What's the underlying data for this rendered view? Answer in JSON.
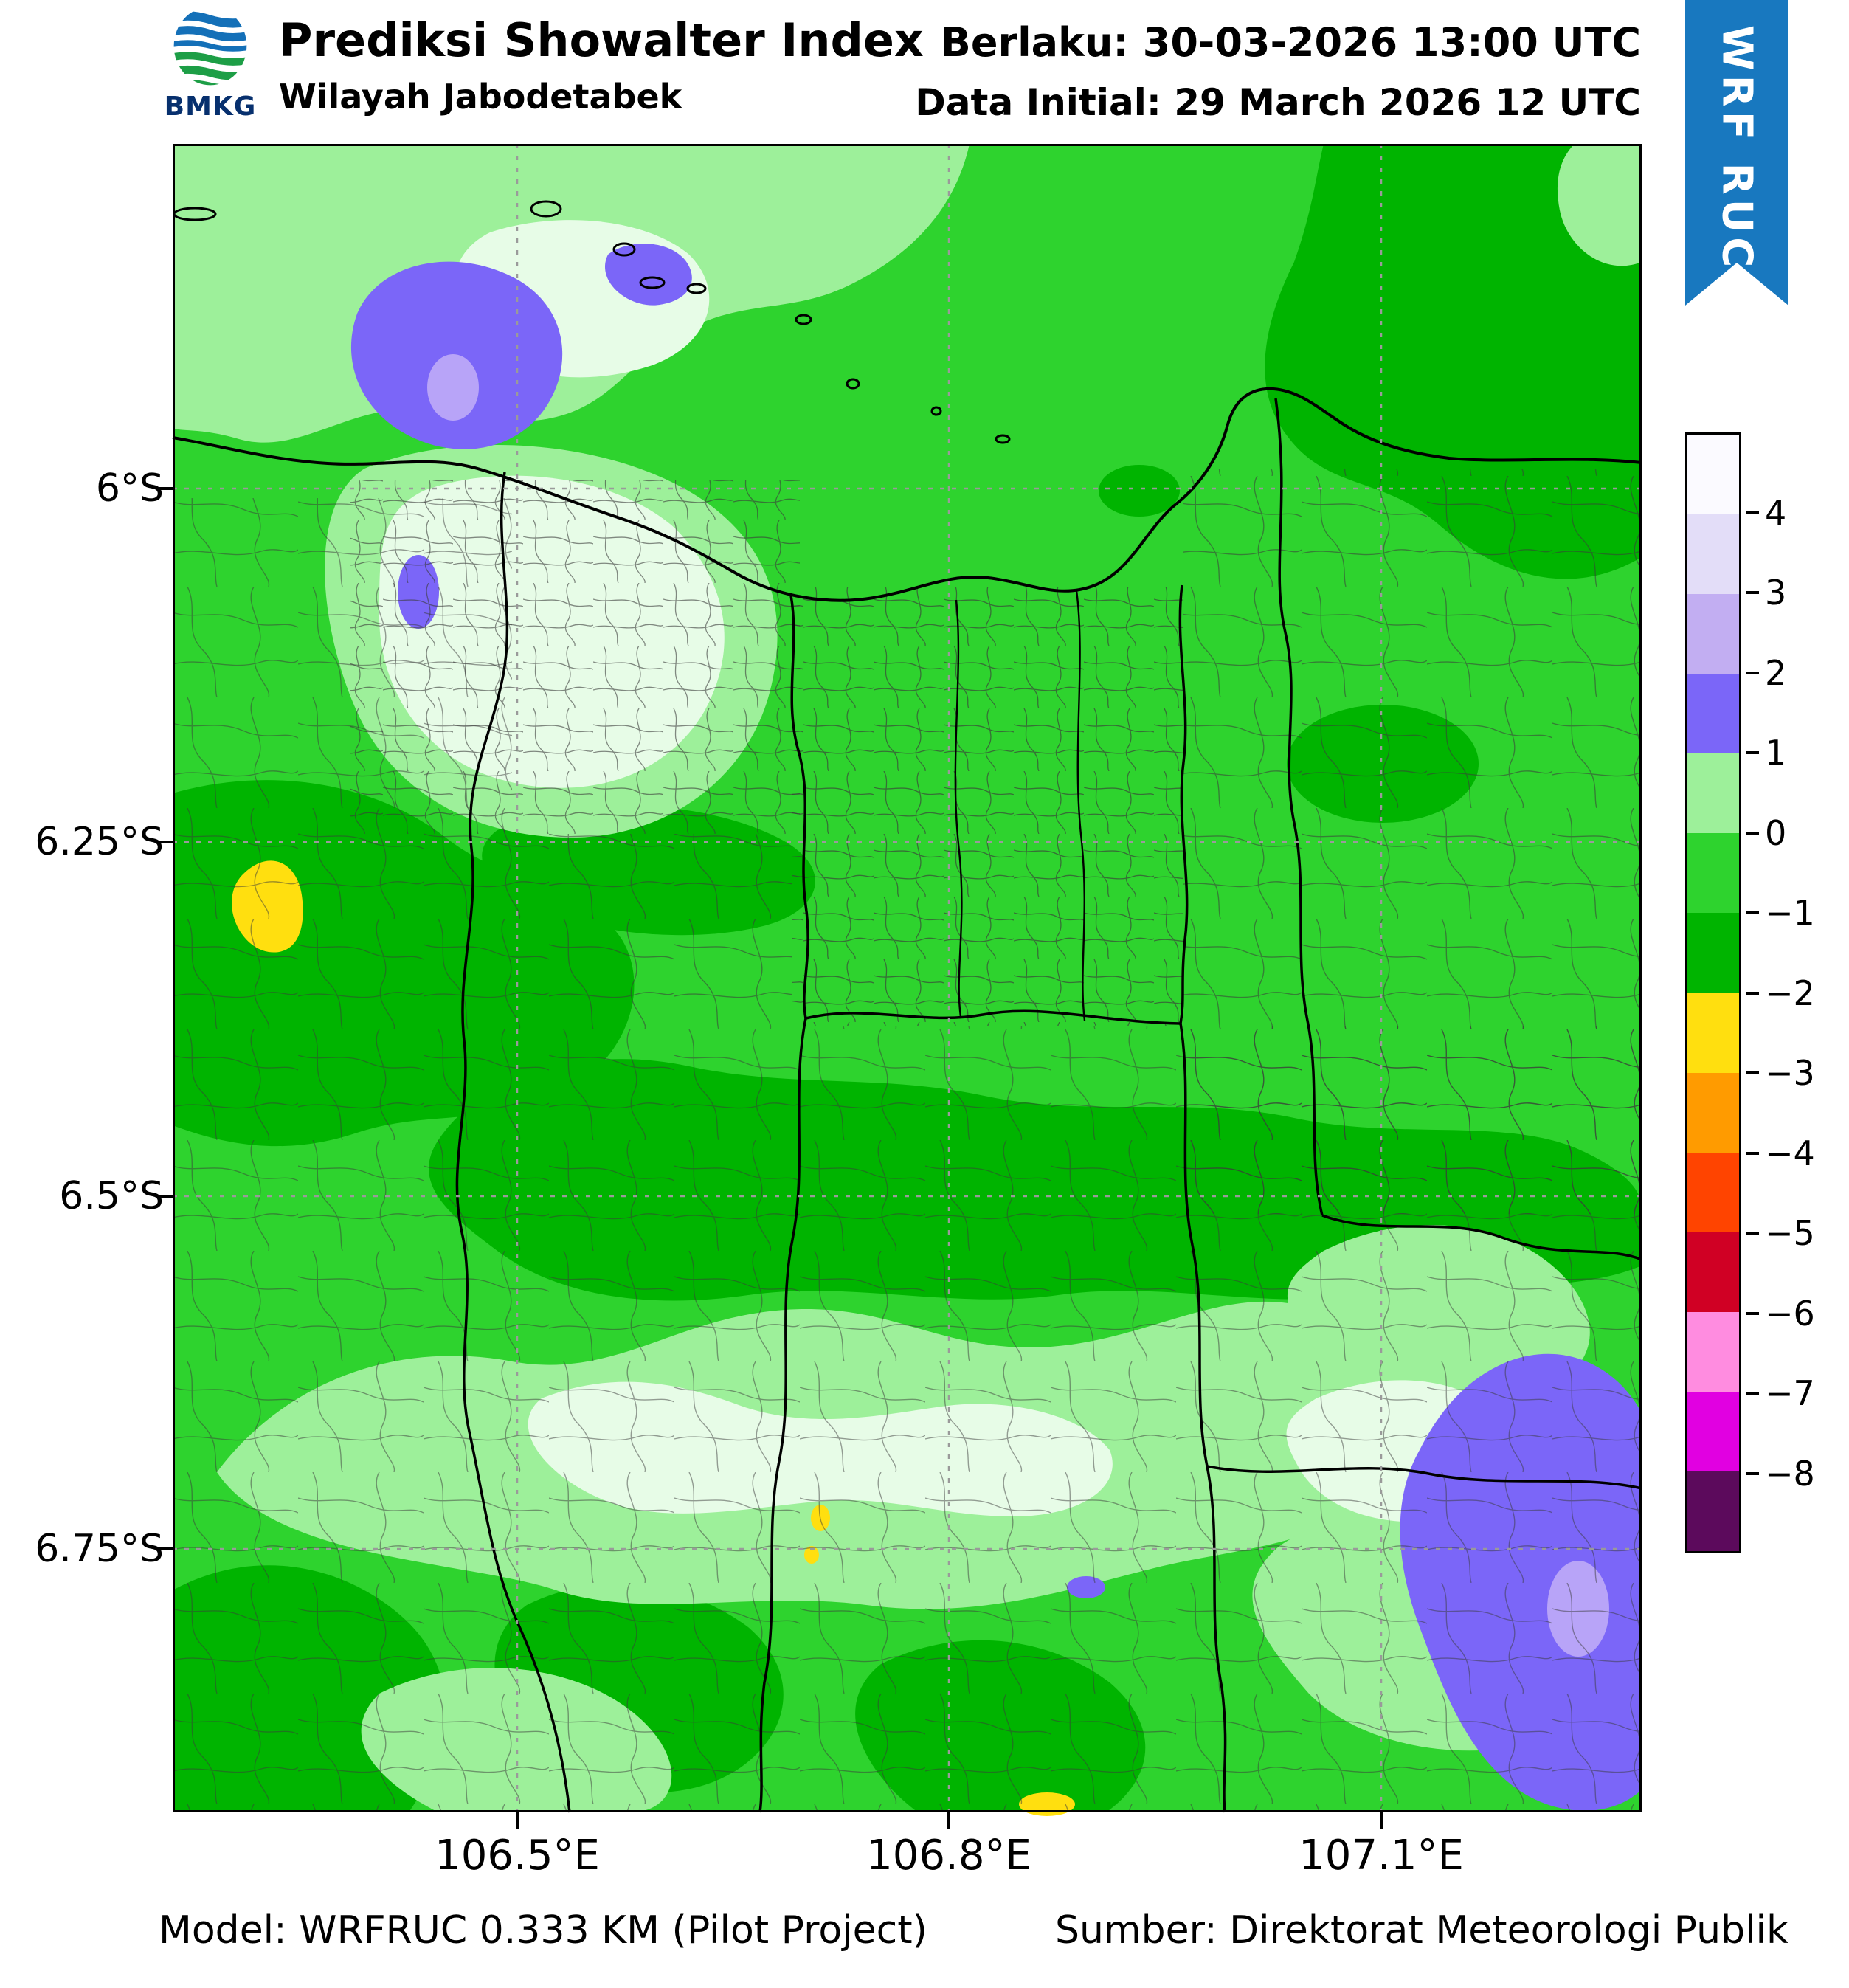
{
  "header": {
    "logo_text": "BMKG",
    "title": "Prediksi Showalter Index",
    "subtitle": "Wilayah Jabodetabek",
    "valid": "Berlaku: 30-03-2026 13:00 UTC",
    "initial": "Data Initial: 29 March 2026 12 UTC",
    "ribbon": "WRF RUC"
  },
  "axes": {
    "lat_ticks": [
      "6°S",
      "6.25°S",
      "6.5°S",
      "6.75°S"
    ],
    "lon_ticks": [
      "106.5°E",
      "106.8°E",
      "107.1°E"
    ]
  },
  "colorbar": {
    "tick_labels": [
      "4",
      "3",
      "2",
      "1",
      "0",
      "−1",
      "−2",
      "−3",
      "−4",
      "−5",
      "−6",
      "−7",
      "−8"
    ],
    "segment_colors": [
      "#fbfaff",
      "#e3ddf8",
      "#c2aef2",
      "#7b66f8",
      "#9df09a",
      "#2ed32e",
      "#00b400",
      "#ffdf0f",
      "#ff9b00",
      "#ff4400",
      "#d00024",
      "#ff8ce0",
      "#e100e1",
      "#5c0a5c"
    ]
  },
  "footer": {
    "model": "Model: WRFRUC 0.333 KM (Pilot Project)",
    "source": "Sumber: Direktorat Meteorologi Publik"
  },
  "palette": {
    "ribbon_blue": "#1878bf",
    "map_base_green": "#2ed32e",
    "dark_green": "#00b400",
    "light_green": "#9df09a",
    "pale_green": "#e7fce7",
    "purple": "#7b66f8",
    "light_purple": "#b8a4f8",
    "yellow": "#ffdf0f"
  },
  "chart_data": {
    "type": "heatmap",
    "title": "Prediksi Showalter Index",
    "region": "Wilayah Jabodetabek",
    "valid": "30-03-2026 13:00 UTC",
    "initial": "29 March 2026 12 UTC",
    "x_ticks": [
      "106.5°E",
      "106.8°E",
      "107.1°E"
    ],
    "y_ticks": [
      "6°S",
      "6.25°S",
      "6.5°S",
      "6.75°S"
    ],
    "levels": [
      4,
      3,
      2,
      1,
      0,
      -1,
      -2,
      -3,
      -4,
      -5,
      -6,
      -7,
      -8
    ],
    "legend_position": "right",
    "dominant_levels": "0 to −2 greens across domain; pockets of 1–3 (purple) NW and SE; isolated −2 to −3 (yellow) spots"
  }
}
